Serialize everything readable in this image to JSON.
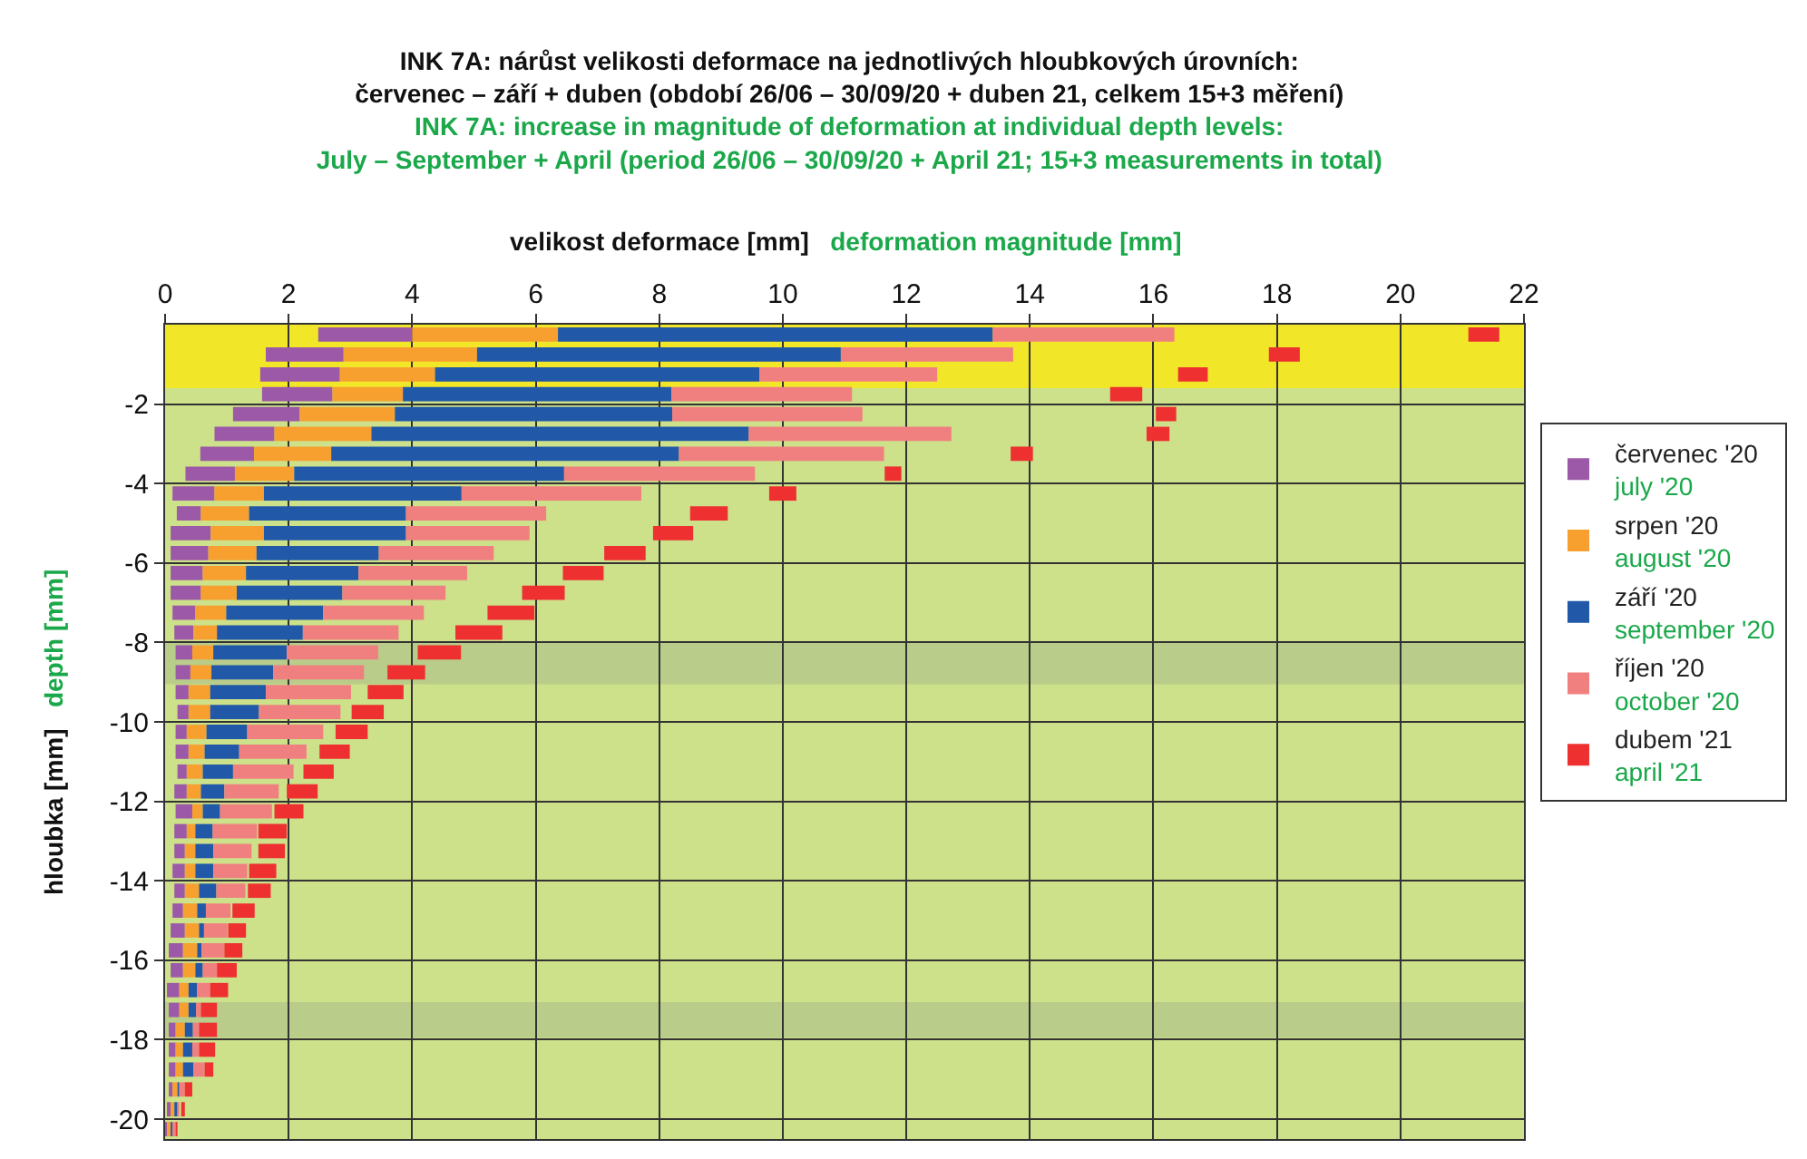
{
  "chart_data": {
    "type": "bar",
    "orientation": "horizontal",
    "title": "INK 7A: nárůst velikosti deformace na jednotlivých hloubkových úrovních:\nčervenec – září + duben (období 26/06 – 30/09/20 + duben 21, celkem 15+3 měření)",
    "subtitle": "INK 7A: increase in magnitude of deformation at individual depth levels:\nJuly – September + April (period 26/06 – 30/09/20 + April 21; 15+3 measurements in total)",
    "xlabel": "velikost deformace [mm]",
    "ylabel": "hloubka [mm]",
    "annotations": [
      "deformation magnitude [mm]",
      "depth [mm]"
    ],
    "x": [
      -0.25,
      -0.75,
      -1.25,
      -1.75,
      -2.25,
      -2.75,
      -3.25,
      -3.75,
      -4.25,
      -4.75,
      -5.25,
      -5.75,
      -6.25,
      -6.75,
      -7.25,
      -7.75,
      -8.25,
      -8.75,
      -9.25,
      -9.75,
      -10.25,
      -10.75,
      -11.25,
      -11.75,
      -12.25,
      -12.75,
      -13.25,
      -13.75,
      -14.25,
      -14.75,
      -15.25,
      -15.75,
      -16.25,
      -16.75,
      -17.25,
      -17.75,
      -18.25,
      -18.75,
      -19.25,
      -19.75,
      -20.25
    ],
    "series": [
      {
        "name": "červenec '20\njuly '20",
        "color": "#9b59a8",
        "base": [
          2.48,
          1.63,
          1.54,
          1.57,
          1.1,
          0.8,
          0.57,
          0.33,
          0.12,
          0.19,
          0.09,
          0.09,
          0.09,
          0.09,
          0.12,
          0.15,
          0.17,
          0.17,
          0.17,
          0.2,
          0.17,
          0.17,
          0.2,
          0.15,
          0.17,
          0.15,
          0.15,
          0.12,
          0.15,
          0.12,
          0.09,
          0.06,
          0.09,
          0.03,
          0.06,
          0.06,
          0.06,
          0.06,
          0.06,
          0.03,
          0
        ],
        "values": [
          1.52,
          1.26,
          1.29,
          1.14,
          1.08,
          0.97,
          0.87,
          0.8,
          0.68,
          0.39,
          0.65,
          0.61,
          0.52,
          0.49,
          0.37,
          0.31,
          0.27,
          0.24,
          0.21,
          0.18,
          0.18,
          0.21,
          0.15,
          0.2,
          0.27,
          0.2,
          0.17,
          0.2,
          0.17,
          0.17,
          0.23,
          0.23,
          0.2,
          0.2,
          0.17,
          0.11,
          0.11,
          0.11,
          0.06,
          0.06,
          0.03
        ]
      },
      {
        "name": "srpen '20\naugust '20",
        "color": "#f7a030",
        "base": [
          4.0,
          2.89,
          2.83,
          2.71,
          2.18,
          1.77,
          1.44,
          1.13,
          0.8,
          0.58,
          0.74,
          0.7,
          0.61,
          0.58,
          0.49,
          0.46,
          0.44,
          0.41,
          0.38,
          0.38,
          0.35,
          0.38,
          0.35,
          0.35,
          0.44,
          0.35,
          0.32,
          0.32,
          0.32,
          0.29,
          0.32,
          0.29,
          0.29,
          0.23,
          0.23,
          0.17,
          0.17,
          0.17,
          0.12,
          0.09,
          0.03
        ],
        "values": [
          2.36,
          2.16,
          1.54,
          1.14,
          1.54,
          1.57,
          1.25,
          0.96,
          0.8,
          0.78,
          0.86,
          0.78,
          0.7,
          0.58,
          0.5,
          0.38,
          0.34,
          0.34,
          0.35,
          0.35,
          0.32,
          0.26,
          0.26,
          0.23,
          0.17,
          0.14,
          0.17,
          0.17,
          0.23,
          0.23,
          0.23,
          0.23,
          0.2,
          0.15,
          0.15,
          0.15,
          0.12,
          0.12,
          0.08,
          0.06,
          0.06
        ]
      },
      {
        "name": "září '20\nseptember '20",
        "color": "#2158a8",
        "base": [
          6.36,
          5.05,
          4.37,
          3.85,
          3.72,
          3.34,
          2.69,
          2.09,
          1.6,
          1.36,
          1.6,
          1.48,
          1.31,
          1.16,
          0.99,
          0.84,
          0.78,
          0.75,
          0.73,
          0.73,
          0.67,
          0.64,
          0.61,
          0.58,
          0.61,
          0.49,
          0.49,
          0.49,
          0.55,
          0.52,
          0.55,
          0.52,
          0.49,
          0.38,
          0.38,
          0.32,
          0.29,
          0.29,
          0.2,
          0.15,
          0.09
        ],
        "values": [
          7.04,
          5.89,
          5.25,
          4.35,
          4.49,
          6.11,
          5.63,
          4.37,
          3.2,
          2.54,
          2.3,
          1.98,
          1.82,
          1.71,
          1.57,
          1.39,
          1.19,
          1.0,
          0.9,
          0.79,
          0.66,
          0.56,
          0.49,
          0.38,
          0.28,
          0.28,
          0.29,
          0.29,
          0.28,
          0.14,
          0.08,
          0.07,
          0.12,
          0.14,
          0.12,
          0.13,
          0.15,
          0.17,
          0.03,
          0.05,
          0.03
        ]
      },
      {
        "name": "říjen '20\noctober '20",
        "color": "#f08080",
        "base": [
          13.4,
          10.94,
          9.62,
          8.2,
          8.21,
          9.45,
          8.32,
          6.46,
          4.8,
          3.9,
          3.9,
          3.46,
          3.13,
          2.87,
          2.56,
          2.23,
          1.97,
          1.75,
          1.63,
          1.52,
          1.33,
          1.2,
          1.1,
          0.96,
          0.89,
          0.77,
          0.78,
          0.78,
          0.83,
          0.66,
          0.63,
          0.59,
          0.61,
          0.52,
          0.5,
          0.45,
          0.44,
          0.46,
          0.23,
          0.2,
          0.12
        ],
        "values": [
          2.94,
          2.79,
          2.88,
          2.92,
          3.08,
          3.28,
          3.32,
          3.09,
          2.91,
          2.27,
          2.0,
          1.86,
          1.76,
          1.67,
          1.63,
          1.55,
          1.48,
          1.47,
          1.38,
          1.32,
          1.23,
          1.09,
          0.98,
          0.88,
          0.84,
          0.72,
          0.62,
          0.55,
          0.47,
          0.4,
          0.38,
          0.37,
          0.23,
          0.21,
          0.08,
          0.1,
          0.11,
          0.18,
          0.09,
          0.03,
          0.05
        ]
      },
      {
        "name": "dubem '21\napril '21",
        "color": "#ee3030",
        "base": [
          21.1,
          17.87,
          16.4,
          15.3,
          16.04,
          15.89,
          13.69,
          11.65,
          9.78,
          8.5,
          7.9,
          7.11,
          6.44,
          5.78,
          5.22,
          4.7,
          4.09,
          3.6,
          3.28,
          3.02,
          2.76,
          2.5,
          2.24,
          1.97,
          1.77,
          1.51,
          1.51,
          1.36,
          1.34,
          1.09,
          1.02,
          0.96,
          0.84,
          0.73,
          0.58,
          0.55,
          0.55,
          0.64,
          0.32,
          0.26,
          0.17
        ],
        "values": [
          0.5,
          0.5,
          0.48,
          0.52,
          0.33,
          0.37,
          0.36,
          0.27,
          0.44,
          0.61,
          0.65,
          0.67,
          0.66,
          0.69,
          0.76,
          0.76,
          0.7,
          0.61,
          0.58,
          0.52,
          0.52,
          0.49,
          0.49,
          0.5,
          0.47,
          0.46,
          0.43,
          0.44,
          0.37,
          0.36,
          0.29,
          0.29,
          0.32,
          0.29,
          0.26,
          0.29,
          0.26,
          0.14,
          0.12,
          0.06,
          0.03
        ]
      }
    ],
    "xlim": [
      0,
      22
    ],
    "xticks": [
      0,
      2,
      4,
      6,
      8,
      10,
      12,
      14,
      16,
      18,
      20,
      22
    ],
    "ylim": [
      -20.5,
      0
    ],
    "yticks": [
      -2,
      -4,
      -6,
      -8,
      -10,
      -12,
      -14,
      -16,
      -18,
      -20
    ],
    "bands": [
      {
        "axis": "y",
        "from": 0,
        "to": -1.6,
        "color": "#f2e628"
      },
      {
        "axis": "y",
        "from": -1.6,
        "to": -20.5,
        "color": "#cde08a"
      },
      {
        "axis": "y",
        "from": -8.0,
        "to": -9.05,
        "color": "#b9cc8a"
      },
      {
        "axis": "y",
        "from": -17.05,
        "to": -17.95,
        "color": "#b9cc8a"
      }
    ],
    "grid": true,
    "legend": "right"
  }
}
